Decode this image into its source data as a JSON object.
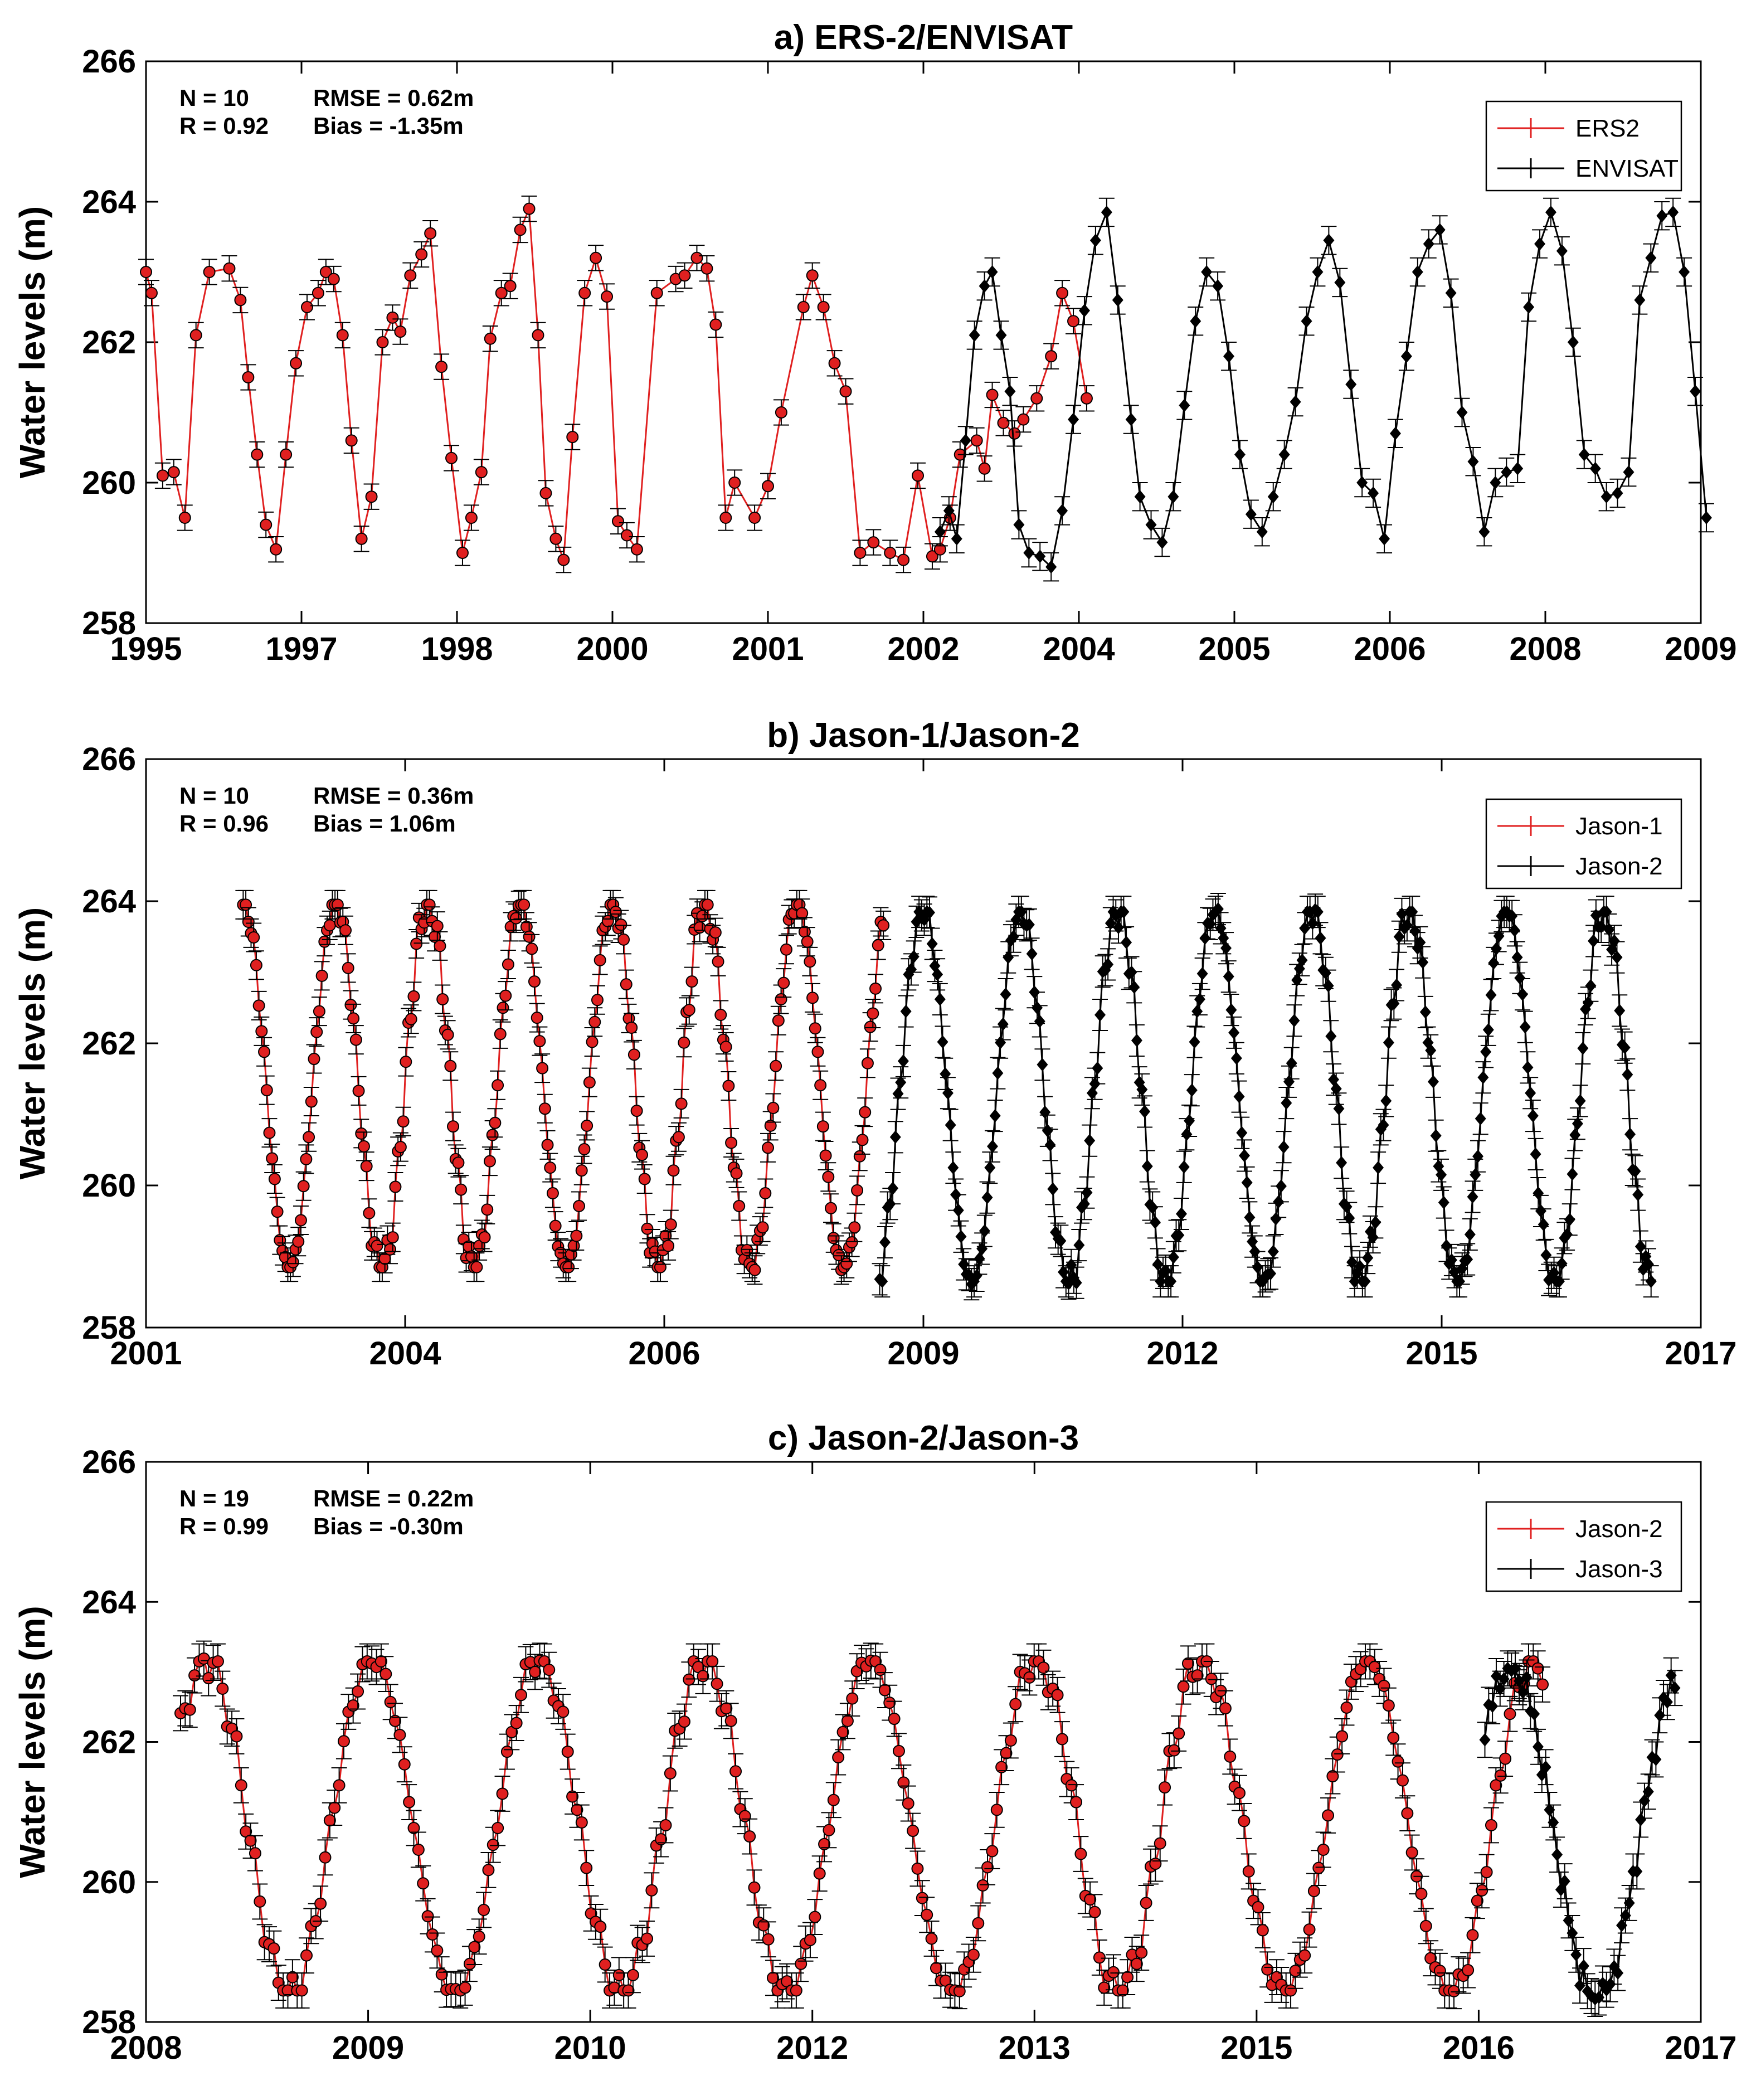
{
  "chart_data": [
    {
      "type": "line",
      "panel": "a",
      "title": "a) ERS-2/ENVISAT",
      "xlabel": "",
      "ylabel": "Water levels (m)",
      "ylim": [
        258,
        266
      ],
      "yticks": [
        "258",
        "260",
        "262",
        "264",
        "266"
      ],
      "xticks": [
        "1995",
        "1997",
        "1998",
        "2000",
        "2001",
        "2002",
        "2004",
        "2005",
        "2006",
        "2008",
        "2009"
      ],
      "xlim": [
        1995.0,
        2009.0
      ],
      "stats": {
        "n": "N = 10",
        "r": "R = 0.92",
        "rmse": "RMSE = 0.62m",
        "bias": "Bias = -1.35m"
      },
      "legend": {
        "position": "top-right",
        "entries": [
          "ERS2",
          "ENVISAT"
        ]
      },
      "series": [
        {
          "name": "ERS2",
          "color": "#e02020",
          "marker": "circle",
          "x": [
            1995.0,
            1995.05,
            1995.15,
            1995.25,
            1995.35,
            1995.45,
            1995.57,
            1995.75,
            1995.85,
            1995.92,
            1996.0,
            1996.08,
            1996.17,
            1996.26,
            1996.35,
            1996.45,
            1996.55,
            1996.62,
            1996.69,
            1996.77,
            1996.85,
            1996.94,
            1997.03,
            1997.13,
            1997.22,
            1997.29,
            1997.38,
            1997.48,
            1997.56,
            1997.66,
            1997.75,
            1997.85,
            1997.93,
            1998.02,
            1998.1,
            1998.2,
            1998.28,
            1998.37,
            1998.45,
            1998.53,
            1998.6,
            1998.69,
            1998.76,
            1998.84,
            1998.95,
            1999.05,
            1999.15,
            1999.25,
            1999.33,
            1999.42,
            1999.6,
            1999.77,
            1999.85,
            1999.96,
            2000.05,
            2000.13,
            2000.22,
            2000.3,
            2000.48,
            2000.6,
            2000.72,
            2000.92,
            2001.0,
            2001.1,
            2001.2,
            2001.3,
            2001.43,
            2001.55,
            2001.7,
            2001.82,
            2001.95,
            2002.08,
            2002.15,
            2002.24,
            2002.33,
            2002.48,
            2002.55,
            2002.62,
            2002.72,
            2002.82,
            2002.9,
            2003.02,
            2003.15,
            2003.25,
            2003.35,
            2003.47
          ],
          "y": [
            263.0,
            262.7,
            260.1,
            260.15,
            259.5,
            262.1,
            263.0,
            263.05,
            262.6,
            261.5,
            260.4,
            259.4,
            259.05,
            260.4,
            261.7,
            262.5,
            262.7,
            263.0,
            262.9,
            262.1,
            260.6,
            259.2,
            259.8,
            262.0,
            262.35,
            262.15,
            262.95,
            263.25,
            263.55,
            261.65,
            260.35,
            259.0,
            259.5,
            260.15,
            262.05,
            262.7,
            262.8,
            263.6,
            263.9,
            262.1,
            259.85,
            259.2,
            258.9,
            260.65,
            262.7,
            263.2,
            262.65,
            259.45,
            259.25,
            259.05,
            262.7,
            262.9,
            262.95,
            263.2,
            263.05,
            262.25,
            259.5,
            260.0,
            259.5,
            259.95,
            261.0,
            262.5,
            262.95,
            262.5,
            261.7,
            261.3,
            259.0,
            259.15,
            259.0,
            258.9,
            260.1,
            258.95,
            259.05,
            259.5,
            260.4,
            260.6,
            260.2,
            261.25,
            260.85,
            260.7,
            260.9,
            261.2,
            261.8,
            262.7,
            262.3,
            261.2
          ],
          "err": 0.18
        },
        {
          "name": "ENVISAT",
          "color": "#000000",
          "marker": "diamond",
          "x": [
            2002.15,
            2002.23,
            2002.3,
            2002.38,
            2002.46,
            2002.55,
            2002.62,
            2002.7,
            2002.78,
            2002.86,
            2002.95,
            2003.05,
            2003.15,
            2003.25,
            2003.35,
            2003.45,
            2003.55,
            2003.65,
            2003.75,
            2003.87,
            2003.95,
            2004.05,
            2004.15,
            2004.25,
            2004.35,
            2004.45,
            2004.55,
            2004.65,
            2004.75,
            2004.85,
            2004.95,
            2005.05,
            2005.15,
            2005.25,
            2005.35,
            2005.45,
            2005.55,
            2005.65,
            2005.75,
            2005.85,
            2005.95,
            2006.05,
            2006.15,
            2006.25,
            2006.35,
            2006.45,
            2006.55,
            2006.65,
            2006.75,
            2006.85,
            2006.95,
            2007.05,
            2007.15,
            2007.25,
            2007.35,
            2007.45,
            2007.55,
            2007.65,
            2007.75,
            2007.85,
            2007.95,
            2008.05,
            2008.15,
            2008.25,
            2008.35,
            2008.45,
            2008.55,
            2008.65,
            2008.75,
            2008.85,
            2008.95,
            2009.05
          ],
          "y": [
            259.3,
            259.6,
            259.2,
            260.6,
            262.1,
            262.8,
            263.0,
            262.1,
            261.3,
            259.4,
            259.0,
            258.95,
            258.8,
            259.6,
            260.9,
            262.45,
            263.45,
            263.85,
            262.6,
            260.9,
            259.8,
            259.4,
            259.15,
            259.8,
            261.1,
            262.3,
            263.0,
            262.8,
            261.8,
            260.4,
            259.55,
            259.3,
            259.8,
            260.4,
            261.15,
            262.3,
            263.0,
            263.45,
            262.85,
            261.4,
            260.0,
            259.85,
            259.2,
            260.7,
            261.8,
            263.0,
            263.4,
            263.6,
            262.7,
            261.0,
            260.3,
            259.3,
            260.0,
            260.15,
            260.2,
            262.5,
            263.4,
            263.85,
            263.3,
            262.0,
            260.4,
            260.2,
            259.8,
            259.85,
            260.15,
            262.6,
            263.2,
            263.8,
            263.85,
            263.0,
            261.3,
            259.5
          ],
          "err": 0.2
        }
      ]
    },
    {
      "type": "line",
      "panel": "b",
      "title": "b) Jason-1/Jason-2",
      "xlabel": "",
      "ylabel": "Water levels (m)",
      "ylim": [
        258,
        266
      ],
      "yticks": [
        "258",
        "260",
        "262",
        "264",
        "266"
      ],
      "xticks": [
        "2001",
        "2004",
        "2006",
        "2009",
        "2012",
        "2015",
        "2017"
      ],
      "xlim": [
        2001.0,
        2017.0
      ],
      "stats": {
        "n": "N = 10",
        "r": "R = 0.96",
        "rmse": "RMSE = 0.36m",
        "bias": "Bias = 1.06m"
      },
      "legend": {
        "position": "top-right",
        "entries": [
          "Jason-1",
          "Jason-2"
        ]
      },
      "series": [
        {
          "name": "Jason-1",
          "color": "#e02020",
          "marker": "circle",
          "cycle": {
            "start": 2002.0,
            "end": 2008.6,
            "period": 0.95,
            "phase": 2002.0,
            "min": 258.8,
            "max": 264.0,
            "step": 0.027
          },
          "err": 0.2
        },
        {
          "name": "Jason-2",
          "color": "#000000",
          "marker": "diamond",
          "cycle": {
            "start": 2008.55,
            "end": 2016.5,
            "period": 1.0,
            "phase": 2009.0,
            "min": 258.6,
            "max": 263.9,
            "step": 0.027
          },
          "err": 0.22
        }
      ]
    },
    {
      "type": "line",
      "panel": "c",
      "title": "c) Jason-2/Jason-3",
      "xlabel": "",
      "ylabel": "Water levels (m)",
      "ylim": [
        258,
        266
      ],
      "yticks": [
        "258",
        "260",
        "262",
        "264",
        "266"
      ],
      "xticks": [
        "2008",
        "2009",
        "2010",
        "2012",
        "2013",
        "2015",
        "2016",
        "2017"
      ],
      "xlim": [
        2008.0,
        2017.0
      ],
      "stats": {
        "n": "N = 19",
        "r": "R = 0.99",
        "rmse": "RMSE = 0.22m",
        "bias": "Bias = -0.30m"
      },
      "legend": {
        "position": "top-right",
        "entries": [
          "Jason-2",
          "Jason-3"
        ]
      },
      "series": [
        {
          "name": "Jason-2",
          "color": "#e02020",
          "marker": "circle",
          "cycle": {
            "start": 2008.2,
            "end": 2016.1,
            "period": 0.96,
            "phase": 2008.35,
            "min": 258.4,
            "max": 263.2,
            "step": 0.027
          },
          "err": 0.25
        },
        {
          "name": "Jason-3",
          "color": "#000000",
          "marker": "diamond",
          "cycle": {
            "start": 2015.75,
            "end": 2016.85,
            "period": 1.0,
            "phase": 2015.9,
            "min": 258.3,
            "max": 263.1,
            "step": 0.022
          },
          "err": 0.25
        }
      ]
    }
  ]
}
